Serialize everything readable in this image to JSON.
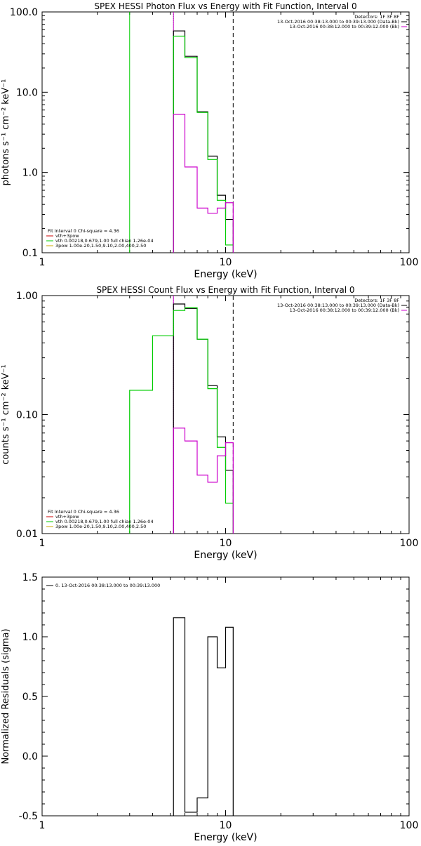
{
  "chart_data": [
    {
      "type": "line",
      "title": "SPEX HESSI Photon Flux vs Energy with Fit Function, Interval 0",
      "xlabel": "Energy (keV)",
      "ylabel": "photons s⁻¹ cm⁻² keV⁻¹",
      "xscale": "log",
      "yscale": "log",
      "xlim": [
        1,
        100
      ],
      "ylim": [
        0.1,
        100
      ],
      "xticks": [
        "1",
        "10",
        "100"
      ],
      "yticks": [
        "0.1",
        "1.0",
        "10.0",
        "100.0"
      ],
      "legend_right": [
        "Detectors: 1F 3F 8F",
        "13-Oct-2016 00:38:13.000 to 00:39:13.000 (Data-Bk)",
        "13-Oct-2016 00:38:12.000 to 00:39:12.000 (Bk)"
      ],
      "legend_left": [
        "Fit Interval  0   Chi-square = 4.36",
        "vth+3pow",
        "vth 0.00218,0.679,1.00  full chian 1.26e-04",
        "3pow 1.00e-20,1.50,9.10,2.00,400,2.50"
      ],
      "vlines": [
        {
          "x": 3.0,
          "color": "#00cc00",
          "style": "solid"
        },
        {
          "x": 5.2,
          "color": "#00cc00",
          "style": "dotted"
        },
        {
          "x": 5.2,
          "color": "#cc00cc",
          "style": "solid"
        },
        {
          "x": 11.0,
          "color": "#000000",
          "style": "dashed"
        }
      ],
      "series": [
        {
          "color": "#000000",
          "edges": [
            5.2,
            6.0,
            7.0,
            8.0,
            9.0,
            10.0,
            11.0
          ],
          "values": [
            58,
            28,
            5.7,
            1.6,
            0.52,
            0.26
          ]
        },
        {
          "color": "#00cc00",
          "edges": [
            5.2,
            6.0,
            7.0,
            8.0,
            9.0,
            10.0,
            11.0
          ],
          "values": [
            50,
            27,
            5.6,
            1.45,
            0.45,
            0.125
          ]
        },
        {
          "color": "#cc00cc",
          "edges": [
            5.2,
            6.0,
            7.0,
            8.0,
            9.0,
            10.0,
            11.0
          ],
          "values": [
            5.3,
            1.17,
            0.36,
            0.31,
            0.36,
            0.42
          ]
        }
      ]
    },
    {
      "type": "line",
      "title": "SPEX HESSI Count Flux vs Energy with Fit Function, Interval 0",
      "xlabel": "Energy (keV)",
      "ylabel": "counts s⁻¹ cm⁻² keV⁻¹",
      "xscale": "log",
      "yscale": "log",
      "xlim": [
        1,
        100
      ],
      "ylim": [
        0.01,
        1.0
      ],
      "xticks": [
        "1",
        "10",
        "100"
      ],
      "yticks": [
        "0.01",
        "0.10",
        "1.00"
      ],
      "legend_right": [
        "Detectors: 1F 3F 8F",
        "13-Oct-2016 00:38:13.000 to 00:39:13.000 (Data-Bk)",
        "13-Oct-2016 00:38:12.000 to 00:39:12.000 (Bk)"
      ],
      "legend_left": [
        "Fit Interval  0   Chi-square = 4.36",
        "vth+3pow",
        "vth 0.00218,0.679,1.00  full chian 1.26e-04",
        "3pow 1.00e-20,1.50,9.10,2.00,400,2.50"
      ],
      "vlines": [
        {
          "x": 5.2,
          "color": "#000000",
          "style": "dotted"
        },
        {
          "x": 5.2,
          "color": "#cc00cc",
          "style": "solid"
        },
        {
          "x": 11.0,
          "color": "#000000",
          "style": "dashed"
        }
      ],
      "series": [
        {
          "color": "#000000",
          "edges": [
            5.2,
            6.0,
            7.0,
            8.0,
            9.0,
            10.0,
            11.0
          ],
          "values": [
            0.85,
            0.78,
            0.43,
            0.175,
            0.065,
            0.034
          ]
        },
        {
          "color": "#00cc00",
          "edges": [
            3.0,
            4.0,
            5.2,
            6.0,
            7.0,
            8.0,
            9.0,
            10.0,
            11.0
          ],
          "values": [
            0.16,
            0.46,
            0.75,
            0.79,
            0.43,
            0.165,
            0.053,
            0.018
          ]
        },
        {
          "color": "#cc00cc",
          "edges": [
            5.2,
            6.0,
            7.0,
            8.0,
            9.0,
            10.0,
            11.0
          ],
          "values": [
            0.077,
            0.06,
            0.031,
            0.027,
            0.045,
            0.058
          ]
        }
      ]
    },
    {
      "type": "line",
      "title": "",
      "xlabel": "Energy (keV)",
      "ylabel": "Normalized Residuals (sigma)",
      "xscale": "log",
      "yscale": "linear",
      "xlim": [
        1,
        100
      ],
      "ylim": [
        -0.5,
        1.5
      ],
      "xticks": [
        "1",
        "10",
        "100"
      ],
      "yticks": [
        "-0.5",
        "0.0",
        "0.5",
        "1.0",
        "1.5"
      ],
      "legend_left": [
        "0. 13-Oct-2016 00:38:13.000 to 00:39:13.000"
      ],
      "series": [
        {
          "color": "#000000",
          "edges": [
            5.2,
            6.0,
            7.0,
            8.0,
            9.0,
            10.0,
            11.0
          ],
          "values": [
            1.16,
            -0.47,
            -0.35,
            1.0,
            0.74,
            1.08
          ]
        }
      ]
    }
  ]
}
